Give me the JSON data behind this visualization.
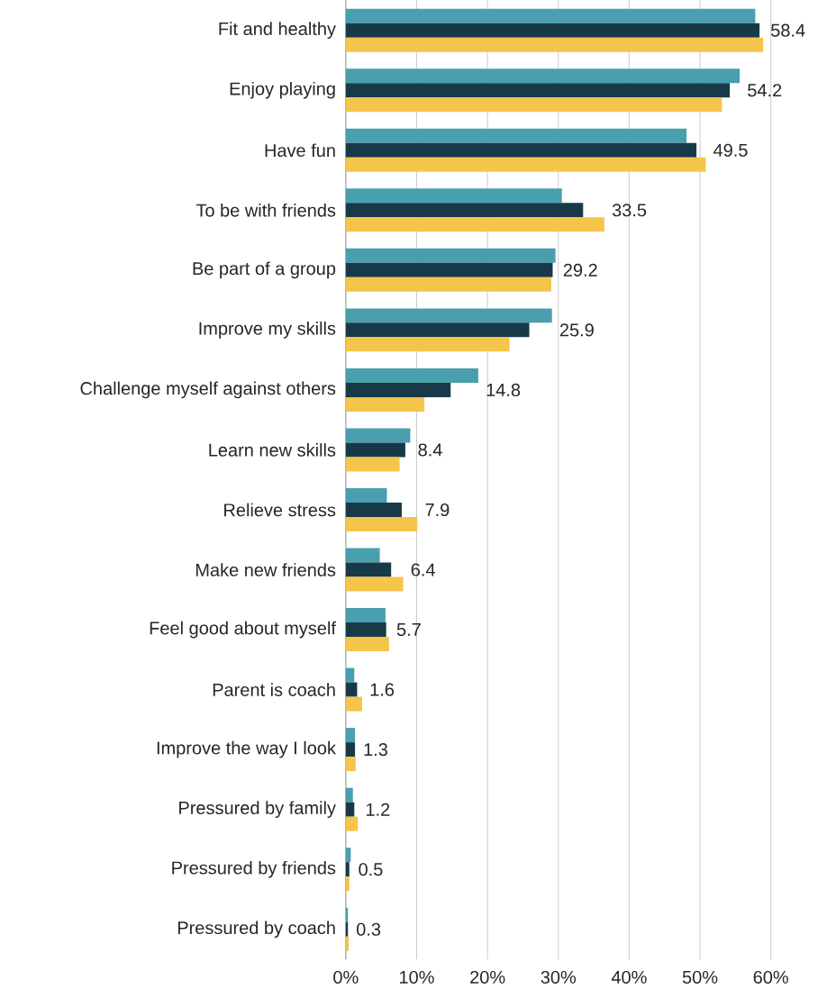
{
  "chart_data": {
    "type": "bar",
    "orientation": "horizontal",
    "categories": [
      "Fit and healthy",
      "Enjoy playing",
      "Have fun",
      "To be with friends",
      "Be part of a group",
      "Improve my skills",
      "Challenge myself against others",
      "Learn new skills",
      "Relieve stress",
      "Make new friends",
      "Feel good about myself",
      "Parent is coach",
      "Improve the way I look",
      "Pressured by family",
      "Pressured by friends",
      "Pressured by coach"
    ],
    "series": [
      {
        "color": "#4a9fae",
        "values": [
          57.8,
          55.6,
          48.1,
          30.5,
          29.6,
          29.1,
          18.7,
          9.1,
          5.8,
          4.8,
          5.6,
          1.2,
          1.3,
          1.0,
          0.7,
          0.3
        ]
      },
      {
        "color": "#183a48",
        "values": [
          58.4,
          54.2,
          49.5,
          33.5,
          29.2,
          25.9,
          14.8,
          8.4,
          7.9,
          6.4,
          5.7,
          1.6,
          1.3,
          1.2,
          0.5,
          0.3
        ],
        "value_labels": [
          "58.4",
          "54.2",
          "49.5",
          "33.5",
          "29.2",
          "25.9",
          "14.8",
          "8.4",
          "7.9",
          "6.4",
          "5.7",
          "1.6",
          "1.3",
          "1.2",
          "0.5",
          "0.3"
        ]
      },
      {
        "color": "#f5c44a",
        "values": [
          58.9,
          53.1,
          50.8,
          36.5,
          29.0,
          23.1,
          11.1,
          7.6,
          10.1,
          8.1,
          6.1,
          2.3,
          1.4,
          1.7,
          0.5,
          0.4
        ]
      }
    ],
    "xlim": [
      0,
      60
    ],
    "xticks": [
      {
        "value": 0,
        "label": "0%"
      },
      {
        "value": 10,
        "label": "10%"
      },
      {
        "value": 20,
        "label": "20%"
      },
      {
        "value": 30,
        "label": "30%"
      },
      {
        "value": 40,
        "label": "40%"
      },
      {
        "value": 50,
        "label": "50%"
      },
      {
        "value": 60,
        "label": "60%"
      }
    ],
    "grid": "x"
  }
}
